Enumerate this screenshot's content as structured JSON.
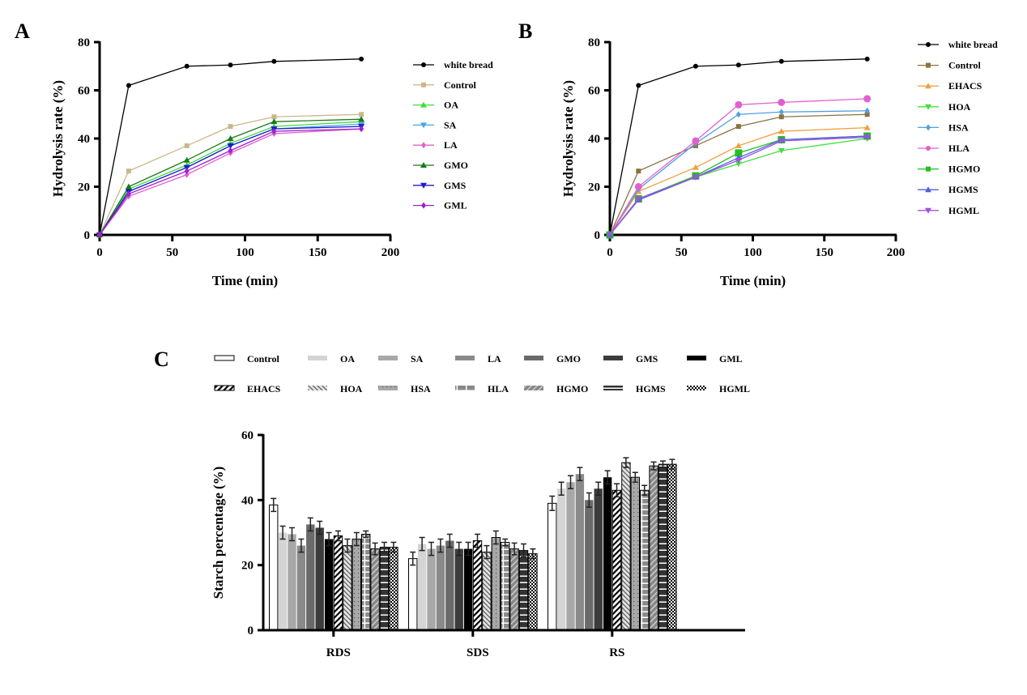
{
  "chart_data": [
    {
      "panel": "A",
      "type": "line",
      "xlabel": "Time (min)",
      "ylabel": "Hydrolysis rate (%)",
      "xlim": [
        0,
        200
      ],
      "ylim": [
        0,
        80
      ],
      "xticks": [
        0,
        50,
        100,
        150,
        200
      ],
      "yticks": [
        0,
        20,
        40,
        60,
        80
      ],
      "grid": false,
      "legend_position": "right",
      "x": [
        0,
        20,
        60,
        90,
        120,
        180
      ],
      "series": [
        {
          "name": "white bread",
          "color": "#000000",
          "marker": "circle",
          "values": [
            0,
            62,
            70,
            70.5,
            72,
            73
          ]
        },
        {
          "name": "Control",
          "color": "#c8b88a",
          "marker": "square",
          "values": [
            0,
            26.5,
            37,
            45,
            49,
            50
          ]
        },
        {
          "name": "OA",
          "color": "#3ddc3d",
          "marker": "triangle",
          "values": [
            0,
            19,
            29,
            38,
            45,
            47
          ]
        },
        {
          "name": "SA",
          "color": "#4aa8e0",
          "marker": "triangle-down",
          "values": [
            0,
            18,
            28,
            37,
            44,
            46
          ]
        },
        {
          "name": "LA",
          "color": "#e060d0",
          "marker": "diamond",
          "values": [
            0,
            16,
            25,
            34,
            42,
            44
          ]
        },
        {
          "name": "GMO",
          "color": "#1a7a1a",
          "marker": "triangle",
          "values": [
            0,
            20,
            31,
            40,
            47,
            48
          ]
        },
        {
          "name": "GMS",
          "color": "#1a1ad0",
          "marker": "triangle-down",
          "values": [
            0,
            18,
            28,
            37,
            44,
            45
          ]
        },
        {
          "name": "GML",
          "color": "#a020d0",
          "marker": "diamond",
          "values": [
            0,
            17,
            26.5,
            35,
            43,
            44
          ]
        }
      ]
    },
    {
      "panel": "B",
      "type": "line",
      "xlabel": "Time (min)",
      "ylabel": "Hydrolysis rate (%)",
      "xlim": [
        0,
        200
      ],
      "ylim": [
        0,
        80
      ],
      "xticks": [
        0,
        50,
        100,
        150,
        200
      ],
      "yticks": [
        0,
        20,
        40,
        60,
        80
      ],
      "grid": false,
      "legend_position": "right",
      "x": [
        0,
        20,
        60,
        90,
        120,
        180
      ],
      "series": [
        {
          "name": "white bread",
          "color": "#000000",
          "marker": "circle",
          "values": [
            0,
            62,
            70,
            70.5,
            72,
            73
          ]
        },
        {
          "name": "Control",
          "color": "#8b7340",
          "marker": "square",
          "values": [
            0,
            26.5,
            37,
            45,
            49,
            50
          ]
        },
        {
          "name": "EHACS",
          "color": "#f0a040",
          "marker": "triangle",
          "values": [
            0,
            18,
            28,
            37,
            43,
            44.5
          ]
        },
        {
          "name": "HOA",
          "color": "#40e040",
          "marker": "triangle-down",
          "values": [
            0,
            15,
            24,
            29.5,
            35,
            40
          ]
        },
        {
          "name": "HSA",
          "color": "#50a0e0",
          "marker": "diamond",
          "values": [
            0,
            19,
            38,
            50,
            51,
            51.5
          ]
        },
        {
          "name": "HLA",
          "color": "#e060d0",
          "marker": "big-circle",
          "values": [
            0,
            20,
            39,
            54,
            55,
            56.5
          ]
        },
        {
          "name": "HGMO",
          "color": "#20c020",
          "marker": "big-square",
          "values": [
            0,
            15,
            24.5,
            34,
            39.5,
            41
          ]
        },
        {
          "name": "HGMS",
          "color": "#5060e0",
          "marker": "triangle",
          "values": [
            0,
            14.5,
            24,
            32,
            39.5,
            41
          ]
        },
        {
          "name": "HGML",
          "color": "#a050e0",
          "marker": "triangle-down",
          "values": [
            0,
            15,
            24,
            31,
            39,
            40.5
          ]
        }
      ]
    },
    {
      "panel": "C",
      "type": "bar",
      "ylabel": "Starch percentage (%)",
      "ylim": [
        0,
        60
      ],
      "yticks": [
        0,
        20,
        40,
        60
      ],
      "grid": false,
      "legend_position": "top",
      "categories": [
        "RDS",
        "SDS",
        "RS"
      ],
      "series": [
        {
          "name": "Control",
          "fill": "white",
          "values": [
            38.5,
            22,
            39
          ],
          "errors": [
            2,
            2,
            2.2
          ]
        },
        {
          "name": "OA",
          "fill": "#d4d4d4",
          "values": [
            30,
            26.5,
            43.5
          ],
          "errors": [
            2,
            2,
            2
          ]
        },
        {
          "name": "SA",
          "fill": "#a8a8a8",
          "values": [
            29.5,
            25,
            45.5
          ],
          "errors": [
            2,
            2,
            2
          ]
        },
        {
          "name": "LA",
          "fill": "#8a8a8a",
          "values": [
            26,
            26,
            48
          ],
          "errors": [
            2,
            2,
            2
          ]
        },
        {
          "name": "GMO",
          "fill": "#6a6a6a",
          "values": [
            32.5,
            27.5,
            40
          ],
          "errors": [
            2,
            2,
            2.2
          ]
        },
        {
          "name": "GMS",
          "fill": "#3c3c3c",
          "values": [
            31.5,
            25,
            43.5
          ],
          "errors": [
            2,
            2,
            2
          ]
        },
        {
          "name": "GML",
          "fill": "#000000",
          "values": [
            28,
            25,
            47
          ],
          "errors": [
            2,
            2,
            2
          ]
        },
        {
          "name": "EHACS",
          "fill": "pattern-hatch",
          "values": [
            29,
            27.5,
            43
          ],
          "errors": [
            1.5,
            2,
            2
          ]
        },
        {
          "name": "HOA",
          "fill": "pattern-lightdiag",
          "values": [
            26,
            24,
            51.5
          ],
          "errors": [
            2,
            2,
            1.5
          ]
        },
        {
          "name": "HSA",
          "fill": "pattern-dots",
          "values": [
            28,
            28.5,
            47
          ],
          "errors": [
            2,
            2,
            1.5
          ]
        },
        {
          "name": "HLA",
          "fill": "pattern-grid",
          "values": [
            29.5,
            27,
            43
          ],
          "errors": [
            1,
            1,
            1.5
          ]
        },
        {
          "name": "HGMO",
          "fill": "pattern-diag",
          "values": [
            25,
            25,
            50.5
          ],
          "errors": [
            1.8,
            1.8,
            1.2
          ]
        },
        {
          "name": "HGMS",
          "fill": "pattern-hlines",
          "values": [
            25.5,
            24.5,
            51
          ],
          "errors": [
            1.5,
            2,
            1
          ]
        },
        {
          "name": "HGML",
          "fill": "pattern-checker",
          "values": [
            25.5,
            23.5,
            51
          ],
          "errors": [
            1.5,
            1.5,
            1.5
          ]
        }
      ]
    }
  ]
}
